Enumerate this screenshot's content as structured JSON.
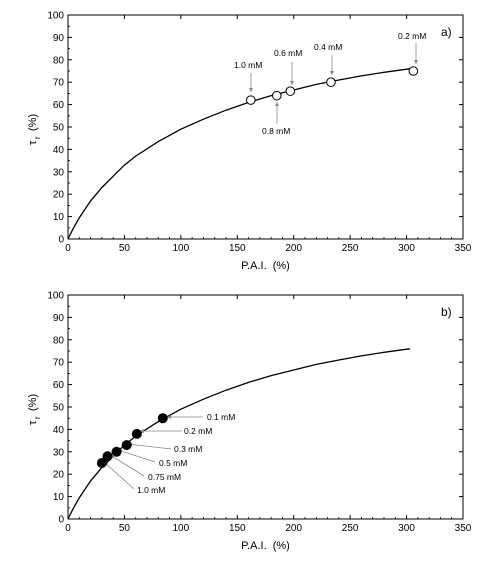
{
  "chart_data": [
    {
      "type": "scatter",
      "panel_tag": "a)",
      "xlabel": "P.A.I.  (%)",
      "ylabel": "τ",
      "ylabel_sub": "r",
      "ylabel_unit": "(%)",
      "xlim": [
        0,
        350
      ],
      "ylim": [
        0,
        100
      ],
      "xticks": [
        "0",
        "50",
        "100",
        "150",
        "200",
        "250",
        "300",
        "350"
      ],
      "yticks": [
        "0",
        "10",
        "20",
        "30",
        "40",
        "50",
        "60",
        "70",
        "80",
        "90",
        "100"
      ],
      "grid": false,
      "marker": "open-circle",
      "points": [
        {
          "label": "1.0 mM",
          "x": 162,
          "y": 62
        },
        {
          "label": "0.8 mM",
          "x": 185,
          "y": 64
        },
        {
          "label": "0.6 mM",
          "x": 197,
          "y": 66
        },
        {
          "label": "0.4 mM",
          "x": 233,
          "y": 70
        },
        {
          "label": "0.2 mM",
          "x": 306,
          "y": 75
        }
      ],
      "curve": {
        "x": [
          0,
          5,
          10,
          20,
          30,
          40,
          50,
          60,
          80,
          100,
          120,
          140,
          160,
          180,
          200,
          220,
          240,
          260,
          280,
          300,
          303
        ],
        "y": [
          0,
          5,
          9.5,
          17,
          23,
          28,
          33,
          37,
          43.5,
          49,
          53.5,
          57.5,
          61,
          64,
          66.5,
          69,
          71,
          72.8,
          74.4,
          75.8,
          76
        ]
      }
    },
    {
      "type": "scatter",
      "panel_tag": "b)",
      "xlabel": "P.A.I.  (%)",
      "ylabel": "τ",
      "ylabel_sub": "r",
      "ylabel_unit": "(%)",
      "xlim": [
        0,
        350
      ],
      "ylim": [
        0,
        100
      ],
      "xticks": [
        "0",
        "50",
        "100",
        "150",
        "200",
        "250",
        "300",
        "350"
      ],
      "yticks": [
        "0",
        "10",
        "20",
        "30",
        "40",
        "50",
        "60",
        "70",
        "80",
        "90",
        "100"
      ],
      "grid": false,
      "marker": "filled-circle",
      "points": [
        {
          "label": "0.1 mM",
          "x": 84,
          "y": 45
        },
        {
          "label": "0.2 mM",
          "x": 61,
          "y": 38
        },
        {
          "label": "0.3 mM",
          "x": 52,
          "y": 33
        },
        {
          "label": "0.5 mM",
          "x": 43,
          "y": 30
        },
        {
          "label": "0.75 mM",
          "x": 35,
          "y": 28
        },
        {
          "label": "1.0 mM",
          "x": 30,
          "y": 25
        }
      ],
      "curve": {
        "x": [
          0,
          5,
          10,
          20,
          30,
          40,
          50,
          60,
          80,
          100,
          120,
          140,
          160,
          180,
          200,
          220,
          240,
          260,
          280,
          300,
          303
        ],
        "y": [
          0,
          5,
          9.5,
          17,
          23,
          28,
          33,
          37,
          43.5,
          49,
          53.5,
          57.5,
          61,
          64,
          66.5,
          69,
          71,
          72.8,
          74.4,
          75.8,
          76
        ]
      }
    }
  ]
}
